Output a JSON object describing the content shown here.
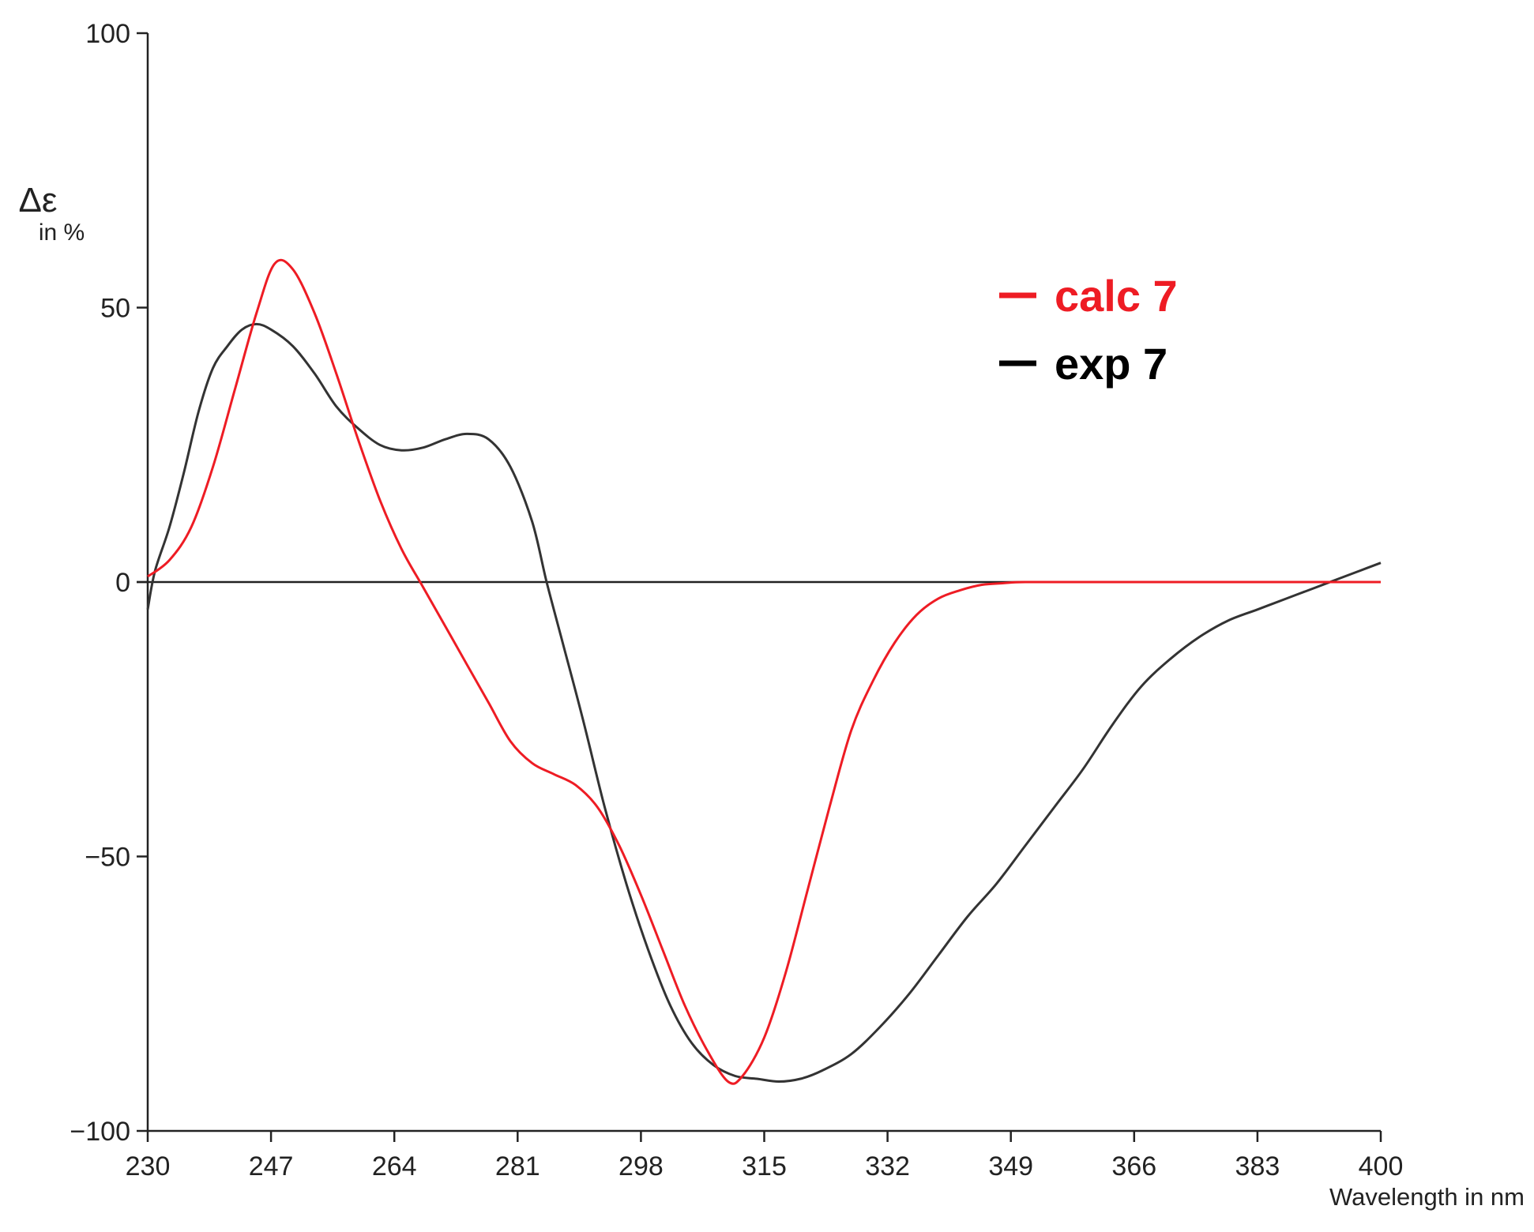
{
  "chart_data": {
    "type": "line",
    "title": "",
    "ylabel": "Δε",
    "ylabel_unit": "in %",
    "xlabel": "Wavelength in nm",
    "xlim": [
      230,
      400
    ],
    "ylim": [
      -100,
      100
    ],
    "x_ticks": [
      230,
      247,
      264,
      281,
      298,
      315,
      332,
      349,
      366,
      383,
      400
    ],
    "y_ticks": [
      100,
      50,
      0,
      -50,
      -100
    ],
    "y_tick_labels": [
      "100",
      "50",
      "0",
      "−50",
      "−100"
    ],
    "grid": false,
    "zero_line": true,
    "legend_position": "top-right",
    "series": [
      {
        "name": "calc 7",
        "color": "#ee1c24",
        "points": [
          [
            230,
            1
          ],
          [
            233,
            4
          ],
          [
            236,
            10
          ],
          [
            239,
            21
          ],
          [
            242,
            35
          ],
          [
            245,
            49
          ],
          [
            247.5,
            58
          ],
          [
            250,
            57
          ],
          [
            253,
            49
          ],
          [
            256,
            38
          ],
          [
            259,
            26
          ],
          [
            262,
            15
          ],
          [
            265,
            6
          ],
          [
            268,
            -1
          ],
          [
            271,
            -8
          ],
          [
            274,
            -15
          ],
          [
            277,
            -22
          ],
          [
            280,
            -29
          ],
          [
            283,
            -33
          ],
          [
            286,
            -35
          ],
          [
            289,
            -37
          ],
          [
            292,
            -41
          ],
          [
            295,
            -48
          ],
          [
            298,
            -57
          ],
          [
            301,
            -67
          ],
          [
            304,
            -77
          ],
          [
            307,
            -85
          ],
          [
            310,
            -91
          ],
          [
            312,
            -90
          ],
          [
            315,
            -83
          ],
          [
            318,
            -71
          ],
          [
            321,
            -56
          ],
          [
            324,
            -41
          ],
          [
            327,
            -27
          ],
          [
            330,
            -18
          ],
          [
            333,
            -11
          ],
          [
            336,
            -6
          ],
          [
            339,
            -3
          ],
          [
            342,
            -1.5
          ],
          [
            345,
            -0.5
          ],
          [
            348,
            -0.2
          ],
          [
            351,
            0
          ],
          [
            360,
            0
          ],
          [
            380,
            0
          ],
          [
            400,
            0
          ]
        ]
      },
      {
        "name": "exp 7",
        "color": "#333333",
        "points": [
          [
            230,
            -5
          ],
          [
            231,
            2
          ],
          [
            233,
            10
          ],
          [
            235,
            20
          ],
          [
            237,
            31
          ],
          [
            239,
            39
          ],
          [
            241,
            43
          ],
          [
            243,
            46
          ],
          [
            245,
            47
          ],
          [
            247,
            46
          ],
          [
            250,
            43
          ],
          [
            253,
            38
          ],
          [
            256,
            32
          ],
          [
            259,
            28
          ],
          [
            262,
            25
          ],
          [
            265,
            24
          ],
          [
            268,
            24.5
          ],
          [
            271,
            26
          ],
          [
            274,
            27
          ],
          [
            277,
            26
          ],
          [
            280,
            21
          ],
          [
            283,
            11
          ],
          [
            285,
            0
          ],
          [
            287,
            -10
          ],
          [
            290,
            -25
          ],
          [
            293,
            -41
          ],
          [
            296,
            -55
          ],
          [
            299,
            -67
          ],
          [
            302,
            -77
          ],
          [
            305,
            -84
          ],
          [
            308,
            -88
          ],
          [
            311,
            -90
          ],
          [
            314,
            -90.5
          ],
          [
            317,
            -91
          ],
          [
            320,
            -90.5
          ],
          [
            323,
            -89
          ],
          [
            327,
            -86
          ],
          [
            331,
            -81
          ],
          [
            335,
            -75
          ],
          [
            339,
            -68
          ],
          [
            343,
            -61
          ],
          [
            347,
            -55
          ],
          [
            351,
            -48
          ],
          [
            355,
            -41
          ],
          [
            359,
            -34
          ],
          [
            363,
            -26
          ],
          [
            367,
            -19
          ],
          [
            371,
            -14
          ],
          [
            375,
            -10
          ],
          [
            379,
            -7
          ],
          [
            383,
            -5
          ],
          [
            387,
            -3
          ],
          [
            391,
            -1
          ],
          [
            394,
            0.5
          ],
          [
            397,
            2
          ],
          [
            400,
            3.5
          ]
        ]
      }
    ]
  }
}
